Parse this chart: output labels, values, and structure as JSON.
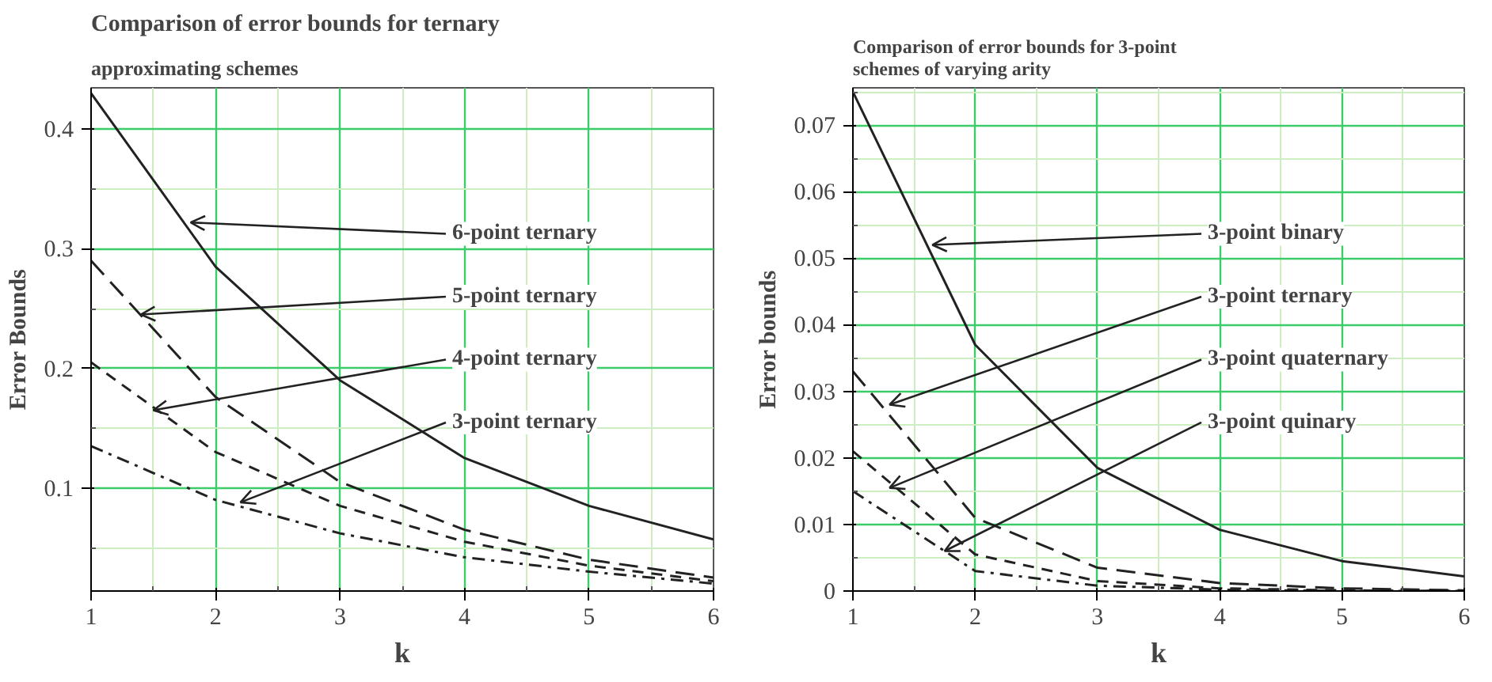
{
  "chart_data": [
    {
      "type": "line",
      "title": "Comparison of error bounds for ternary",
      "subtitle": "approximating schemes",
      "xlabel": "k",
      "ylabel": "Error Bounds",
      "x": [
        1,
        2,
        3,
        4,
        5,
        6
      ],
      "xlim": [
        1,
        6
      ],
      "xticks": [
        1,
        {
          "value": 1.5,
          "label": null
        },
        2,
        {
          "value": 2.5,
          "label": null
        },
        3,
        {
          "value": 3.5,
          "label": null
        },
        4,
        {
          "value": 4.5,
          "label": null
        },
        5,
        {
          "value": 5.5,
          "label": null
        },
        6
      ],
      "ylim": [
        0.0138,
        0.4346
      ],
      "yticks": [
        {
          "value": 0.05,
          "label": null
        },
        0.1,
        {
          "value": 0.15,
          "label": null
        },
        0.2,
        {
          "value": 0.25,
          "label": null
        },
        0.3,
        {
          "value": 0.35,
          "label": null
        },
        0.4
      ],
      "grid": true,
      "series": [
        {
          "color": "#222222",
          "line_style": "solid",
          "values": [
            0.43,
            0.285,
            0.19,
            0.125,
            0.085,
            0.057
          ]
        },
        {
          "color": "#222222",
          "line_style": "longdash",
          "values": [
            0.29,
            0.176,
            0.105,
            0.065,
            0.04,
            0.025
          ]
        },
        {
          "color": "#222222",
          "line_style": "dashed",
          "values": [
            0.205,
            0.13,
            0.085,
            0.055,
            0.035,
            0.022
          ]
        },
        {
          "color": "#222222",
          "line_style": "dashdot",
          "values": [
            0.135,
            0.09,
            0.062,
            0.042,
            0.03,
            0.02
          ]
        }
      ],
      "annotations": [
        {
          "text": "6-point ternary",
          "x": 1.8,
          "y": 0.322
        },
        {
          "text": "5-point ternary",
          "x": 1.4,
          "y": 0.245
        },
        {
          "text": "4-point ternary",
          "x": 1.5,
          "y": 0.165
        },
        {
          "text": "3-point ternary",
          "x": 2.2,
          "y": 0.088
        }
      ]
    },
    {
      "type": "line",
      "title": "Comparison of error bounds for 3-point schemes of varying arity",
      "xlabel": "k",
      "ylabel": "Error bounds",
      "x": [
        1,
        2,
        3,
        4,
        5,
        6
      ],
      "xlim": [
        1,
        6
      ],
      "xticks": [
        1,
        {
          "value": 1.5,
          "label": null
        },
        2,
        {
          "value": 2.5,
          "label": null
        },
        3,
        {
          "value": 3.5,
          "label": null
        },
        4,
        {
          "value": 4.5,
          "label": null
        },
        5,
        {
          "value": 5.5,
          "label": null
        },
        6
      ],
      "ylim": [
        0,
        0.0756
      ],
      "yticks": [
        0,
        {
          "value": 0.005,
          "label": null
        },
        0.01,
        {
          "value": 0.015,
          "label": null
        },
        0.02,
        {
          "value": 0.025,
          "label": null
        },
        0.03,
        {
          "value": 0.035,
          "label": null
        },
        0.04,
        {
          "value": 0.045,
          "label": null
        },
        0.05,
        {
          "value": 0.055,
          "label": null
        },
        0.06,
        {
          "value": 0.065,
          "label": null
        },
        0.07,
        {
          "value": 0.075,
          "label": null
        }
      ],
      "grid": true,
      "series": [
        {
          "color": "#222222",
          "line_style": "solid",
          "values": [
            0.075,
            0.037,
            0.0185,
            0.0092,
            0.0045,
            0.0022
          ]
        },
        {
          "color": "#222222",
          "line_style": "longdash",
          "values": [
            0.033,
            0.011,
            0.0035,
            0.0012,
            0.0004,
            0.0001
          ]
        },
        {
          "color": "#222222",
          "line_style": "dashed",
          "values": [
            0.021,
            0.0055,
            0.0015,
            0.0004,
            0.0001,
            0.0
          ]
        },
        {
          "color": "#222222",
          "line_style": "dashdot",
          "values": [
            0.015,
            0.003,
            0.0008,
            0.0002,
            0.0,
            0.0
          ]
        }
      ],
      "annotations": [
        {
          "text": "3-point binary",
          "x": 1.65,
          "y": 0.052
        },
        {
          "text": "3-point ternary",
          "x": 1.3,
          "y": 0.028
        },
        {
          "text": "3-point quaternary",
          "x": 1.3,
          "y": 0.0155
        },
        {
          "text": "3-point quinary",
          "x": 1.75,
          "y": 0.006
        }
      ]
    }
  ]
}
